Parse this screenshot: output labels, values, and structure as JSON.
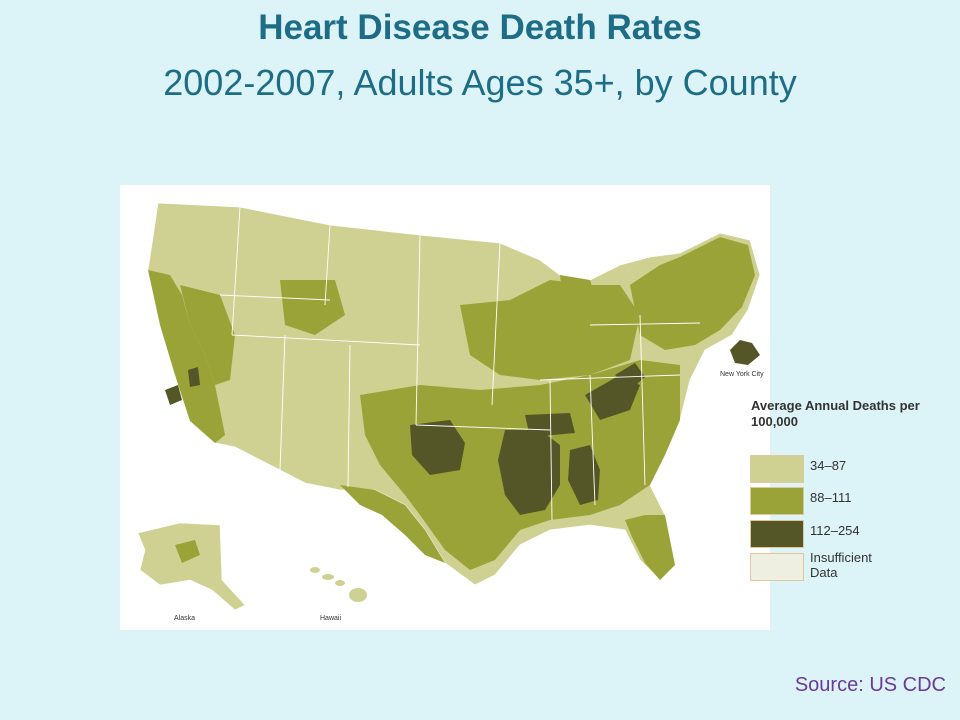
{
  "title": "Heart Disease Death Rates",
  "subtitle": "2002-2007, Adults Ages 35+, by County",
  "map": {
    "inset_labels": {
      "alaska": "Alaska",
      "hawaii": "Hawaii",
      "new_york_city": "New York City"
    }
  },
  "legend": {
    "title": "Average Annual Deaths per 100,000",
    "items": [
      {
        "label": "34–87",
        "color": "#cfd192"
      },
      {
        "label": "88–111",
        "color": "#9aa337"
      },
      {
        "label": "112–254",
        "color": "#555628"
      },
      {
        "label": "Insufficient Data",
        "color": "#eeefe0"
      }
    ]
  },
  "source": "Source:  US CDC",
  "colors": {
    "low": "#cfd192",
    "mid": "#9aa337",
    "high": "#555628",
    "insufficient": "#eeefe0",
    "title": "#1d6d86",
    "background": "#dcf4f8"
  }
}
